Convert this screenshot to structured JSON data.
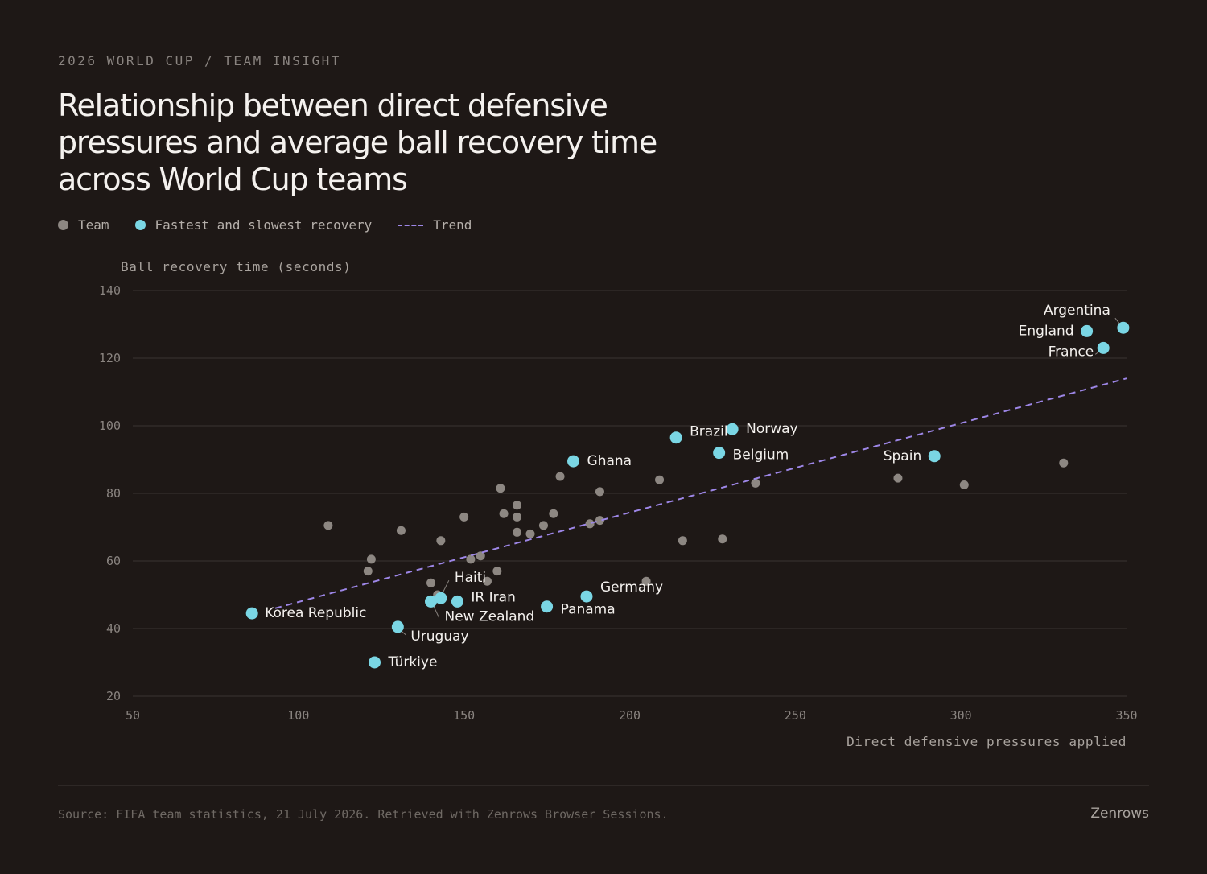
{
  "header": {
    "eyebrow": "2026 WORLD CUP / TEAM INSIGHT",
    "title": "Relationship between direct defensive pressures and average ball recovery time across World Cup teams"
  },
  "legend": [
    {
      "label": "Team",
      "marker": "dot",
      "color": "#8d8782"
    },
    {
      "label": "Fastest and slowest recovery",
      "marker": "dot",
      "color": "#7ad6e4"
    },
    {
      "label": "Trend",
      "marker": "dashed-line",
      "color": "#9d86e6"
    }
  ],
  "footer": {
    "source": "Source: FIFA team statistics, 21 July 2026. Retrieved with Zenrows Browser Sessions.",
    "brand": "Zenrows"
  },
  "chart_data": {
    "type": "scatter",
    "xlabel": "Direct defensive pressures applied",
    "ylabel": "Ball recovery time (seconds)",
    "xlim": [
      50,
      350
    ],
    "ylim": [
      20,
      140
    ],
    "xticks": [
      50,
      100,
      150,
      200,
      250,
      300,
      350
    ],
    "yticks": [
      20,
      40,
      60,
      80,
      100,
      120,
      140
    ],
    "grid": "horizontal",
    "colors": {
      "team": "#8d8782",
      "highlight": "#7ad6e4",
      "trend": "#9d86e6"
    },
    "trend": {
      "from": [
        93,
        46
      ],
      "to": [
        350,
        114
      ]
    },
    "highlighted": [
      {
        "name": "Argentina",
        "x": 349,
        "y": 129
      },
      {
        "name": "England",
        "x": 338,
        "y": 128
      },
      {
        "name": "France",
        "x": 343,
        "y": 123
      },
      {
        "name": "Norway",
        "x": 231,
        "y": 99
      },
      {
        "name": "Brazil",
        "x": 214,
        "y": 96.5
      },
      {
        "name": "Belgium",
        "x": 227,
        "y": 92
      },
      {
        "name": "Spain",
        "x": 292,
        "y": 91
      },
      {
        "name": "Ghana",
        "x": 183,
        "y": 89.5
      },
      {
        "name": "Germany",
        "x": 187,
        "y": 49.5
      },
      {
        "name": "Panama",
        "x": 175,
        "y": 46.5
      },
      {
        "name": "IR Iran",
        "x": 148,
        "y": 48
      },
      {
        "name": "Haiti",
        "x": 143,
        "y": 49
      },
      {
        "name": "New Zealand",
        "x": 140,
        "y": 48
      },
      {
        "name": "Korea Republic",
        "x": 86,
        "y": 44.5
      },
      {
        "name": "Uruguay",
        "x": 130,
        "y": 40.5
      },
      {
        "name": "Türkiye",
        "x": 123,
        "y": 30
      }
    ],
    "others": [
      {
        "x": 109,
        "y": 70.5
      },
      {
        "x": 122,
        "y": 60.5
      },
      {
        "x": 121,
        "y": 57
      },
      {
        "x": 131,
        "y": 69
      },
      {
        "x": 140,
        "y": 53.5
      },
      {
        "x": 142,
        "y": 50
      },
      {
        "x": 143,
        "y": 66
      },
      {
        "x": 150,
        "y": 73
      },
      {
        "x": 152,
        "y": 60.5
      },
      {
        "x": 155,
        "y": 61.5
      },
      {
        "x": 157,
        "y": 54
      },
      {
        "x": 160,
        "y": 57
      },
      {
        "x": 161,
        "y": 81.5
      },
      {
        "x": 162,
        "y": 74
      },
      {
        "x": 166,
        "y": 76.5
      },
      {
        "x": 166,
        "y": 73
      },
      {
        "x": 166,
        "y": 68.5
      },
      {
        "x": 170,
        "y": 68
      },
      {
        "x": 174,
        "y": 70.5
      },
      {
        "x": 177,
        "y": 74
      },
      {
        "x": 179,
        "y": 85
      },
      {
        "x": 188,
        "y": 71
      },
      {
        "x": 191,
        "y": 72
      },
      {
        "x": 191,
        "y": 80.5
      },
      {
        "x": 205,
        "y": 54
      },
      {
        "x": 209,
        "y": 84
      },
      {
        "x": 216,
        "y": 66
      },
      {
        "x": 228,
        "y": 66.5
      },
      {
        "x": 238,
        "y": 83
      },
      {
        "x": 281,
        "y": 84.5
      },
      {
        "x": 301,
        "y": 82.5
      },
      {
        "x": 331,
        "y": 89
      }
    ]
  }
}
